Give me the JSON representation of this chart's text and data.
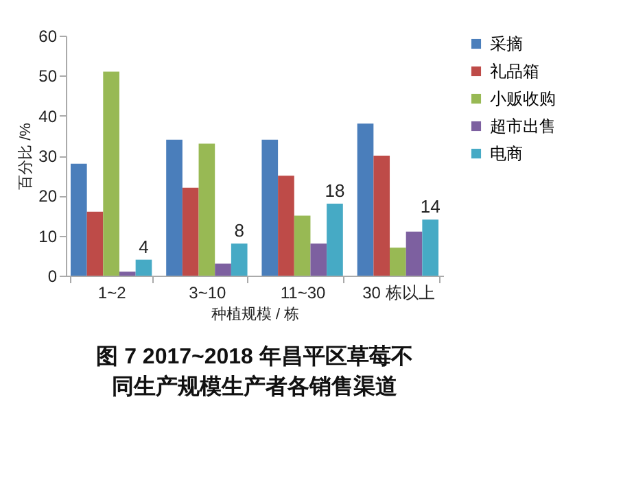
{
  "chart_data": {
    "type": "bar",
    "title": "图 7 2017~2018 年昌平区草莓不同生产规模生产者各销售渠道",
    "xlabel": "种植规模 / 栋",
    "ylabel": "百分比 /%",
    "categories": [
      "1~2",
      "3~10",
      "11~30",
      "30 栋以上"
    ],
    "series": [
      {
        "name": "采摘",
        "color": "#4a7ebb",
        "values": [
          28,
          34,
          34,
          38
        ]
      },
      {
        "name": "礼品箱",
        "color": "#be4b48",
        "values": [
          16,
          22,
          25,
          30
        ]
      },
      {
        "name": "小贩收购",
        "color": "#98b954",
        "values": [
          51,
          33,
          15,
          7
        ]
      },
      {
        "name": "超市出售",
        "color": "#7d60a0",
        "values": [
          1,
          3,
          8,
          11
        ]
      },
      {
        "name": "电商",
        "color": "#46aac5",
        "values": [
          4,
          8,
          18,
          14
        ],
        "value_labels": [
          "4",
          "8",
          "18",
          "14"
        ]
      }
    ],
    "ylim": [
      0,
      60
    ],
    "yticks": [
      0,
      10,
      20,
      30,
      40,
      50,
      60
    ],
    "grid": false,
    "legend": "right"
  }
}
